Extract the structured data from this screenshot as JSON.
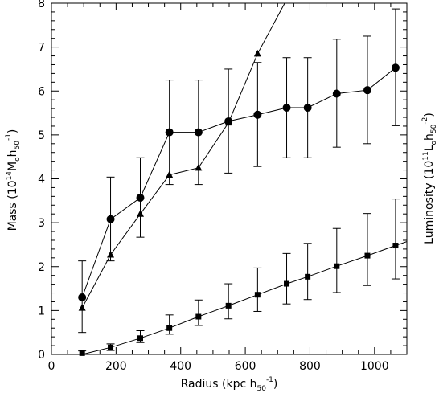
{
  "chart_data": {
    "type": "scatter",
    "xlabel": {
      "main": "Radius (kpc h",
      "sub": "50",
      "sup": "-1",
      "close": ")"
    },
    "ylabel_left": {
      "main": "Mass (10",
      "sup1": "14",
      "mid": "M",
      "sub1": "o",
      "mid2": "h",
      "sub2": "50",
      "sup2": "-1",
      "close": ")"
    },
    "ylabel_right": {
      "main": "Luminosity  (10",
      "sup1": "11",
      "mid": "L",
      "sub1": "o",
      "mid2": "h",
      "sub2": "50",
      "sup2": "-2",
      "close": ")"
    },
    "xlim": [
      0,
      1100
    ],
    "ylim": [
      0,
      8
    ],
    "x_ticks": [
      0,
      200,
      400,
      600,
      800,
      1000
    ],
    "y_ticks": [
      0,
      1,
      2,
      3,
      4,
      5,
      6,
      7,
      8
    ],
    "grid": false,
    "series": [
      {
        "marker": "circle",
        "points": [
          {
            "x": 95,
            "y": 1.3,
            "lo": 0.5,
            "hi": 2.13
          },
          {
            "x": 183,
            "y": 3.08,
            "lo": 2.13,
            "hi": 4.04
          },
          {
            "x": 275,
            "y": 3.57,
            "lo": 2.67,
            "hi": 4.48
          },
          {
            "x": 365,
            "y": 5.06,
            "lo": 3.87,
            "hi": 6.25
          },
          {
            "x": 455,
            "y": 5.06,
            "lo": 3.87,
            "hi": 6.25
          },
          {
            "x": 548,
            "y": 5.31,
            "lo": 4.13,
            "hi": 6.5
          },
          {
            "x": 638,
            "y": 5.46,
            "lo": 4.28,
            "hi": 6.65
          },
          {
            "x": 728,
            "y": 5.62,
            "lo": 4.48,
            "hi": 6.76
          },
          {
            "x": 793,
            "y": 5.62,
            "lo": 4.48,
            "hi": 6.76
          },
          {
            "x": 883,
            "y": 5.94,
            "lo": 4.72,
            "hi": 7.18
          },
          {
            "x": 978,
            "y": 6.02,
            "lo": 4.8,
            "hi": 7.25
          },
          {
            "x": 1065,
            "y": 6.53,
            "lo": 5.21,
            "hi": 7.87
          }
        ]
      },
      {
        "marker": "triangle",
        "points": [
          {
            "x": 95,
            "y": 1.06
          },
          {
            "x": 183,
            "y": 2.27
          },
          {
            "x": 275,
            "y": 3.2
          },
          {
            "x": 365,
            "y": 4.09
          },
          {
            "x": 455,
            "y": 4.25
          },
          {
            "x": 548,
            "y": 5.28
          },
          {
            "x": 638,
            "y": 6.85
          },
          {
            "x": 722,
            "y": 8.0
          }
        ]
      },
      {
        "marker": "square",
        "curve": [
          {
            "x": 95,
            "y": 0.0
          },
          {
            "x": 183,
            "y": 0.16
          },
          {
            "x": 275,
            "y": 0.37
          },
          {
            "x": 365,
            "y": 0.6
          },
          {
            "x": 455,
            "y": 0.86
          },
          {
            "x": 548,
            "y": 1.11
          },
          {
            "x": 638,
            "y": 1.36
          },
          {
            "x": 728,
            "y": 1.61
          },
          {
            "x": 793,
            "y": 1.77
          },
          {
            "x": 883,
            "y": 2.01
          },
          {
            "x": 978,
            "y": 2.25
          },
          {
            "x": 1065,
            "y": 2.48
          },
          {
            "x": 1100,
            "y": 2.57
          }
        ],
        "points": [
          {
            "x": 95,
            "y": 0.03,
            "lo": 0.0,
            "hi": 0.08
          },
          {
            "x": 183,
            "y": 0.16,
            "lo": 0.09,
            "hi": 0.24
          },
          {
            "x": 275,
            "y": 0.37,
            "lo": 0.27,
            "hi": 0.54
          },
          {
            "x": 365,
            "y": 0.6,
            "lo": 0.46,
            "hi": 0.9
          },
          {
            "x": 455,
            "y": 0.86,
            "lo": 0.66,
            "hi": 1.24
          },
          {
            "x": 548,
            "y": 1.11,
            "lo": 0.81,
            "hi": 1.61
          },
          {
            "x": 638,
            "y": 1.36,
            "lo": 0.98,
            "hi": 1.97
          },
          {
            "x": 728,
            "y": 1.61,
            "lo": 1.15,
            "hi": 2.3
          },
          {
            "x": 793,
            "y": 1.77,
            "lo": 1.25,
            "hi": 2.53
          },
          {
            "x": 883,
            "y": 2.01,
            "lo": 1.41,
            "hi": 2.87
          },
          {
            "x": 978,
            "y": 2.25,
            "lo": 1.57,
            "hi": 3.21
          },
          {
            "x": 1065,
            "y": 2.48,
            "lo": 1.72,
            "hi": 3.54
          }
        ]
      }
    ]
  }
}
